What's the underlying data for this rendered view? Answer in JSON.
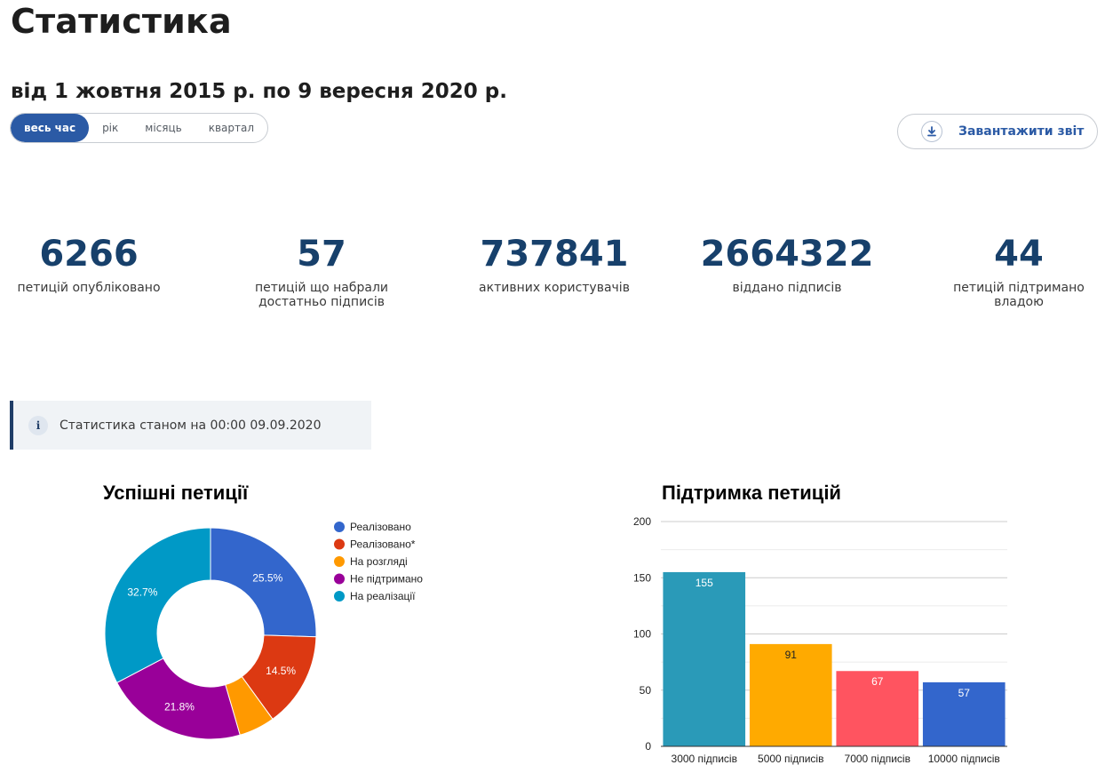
{
  "page": {
    "title": "Статистика",
    "period": "від 1 жовтня 2015 р. по 9 вересня 2020 р."
  },
  "period_tabs": [
    {
      "label": "весь час",
      "active": true
    },
    {
      "label": "рік",
      "active": false
    },
    {
      "label": "місяць",
      "active": false
    },
    {
      "label": "квартал",
      "active": false
    }
  ],
  "download": {
    "label": "Завантажити звіт",
    "icon": "download-icon"
  },
  "stats": [
    {
      "value": "6266",
      "label": "петицій опубліковано"
    },
    {
      "value": "57",
      "label": "петицій що набрали достатньо підписів"
    },
    {
      "value": "737841",
      "label": "активних користувачів"
    },
    {
      "value": "2664322",
      "label": "віддано підписів"
    },
    {
      "value": "44",
      "label": "петицій підтримано владою"
    }
  ],
  "info": {
    "text": "Статистика станом на 00:00 09.09.2020",
    "icon": "info-icon"
  },
  "colors": {
    "accent": "#2b5aa5",
    "stat_number": "#17406b"
  },
  "chart_data": [
    {
      "type": "pie",
      "donut": true,
      "title": "Успішні петиції",
      "legend_position": "right",
      "categories": [
        "Реалізовано",
        "Реалізовано*",
        "На розгляді",
        "Не підтримано",
        "На реалізації"
      ],
      "values": [
        25.5,
        14.5,
        5.5,
        21.8,
        32.7
      ],
      "labels": [
        "25.5%",
        "14.5%",
        "",
        "21.8%",
        "32.7%"
      ],
      "colors": [
        "#3366cc",
        "#dc3912",
        "#ff9900",
        "#990099",
        "#0099c6"
      ]
    },
    {
      "type": "bar",
      "title": "Підтримка петицій",
      "categories": [
        "3000 підписів",
        "5000 підписів",
        "7000 підписів",
        "10000 підписів"
      ],
      "values": [
        155,
        91,
        67,
        57
      ],
      "ylim": [
        0,
        200
      ],
      "yticks": [
        0,
        50,
        100,
        150,
        200
      ],
      "grid": true,
      "colors": [
        "#2a9ab8",
        "#ffaa00",
        "#ff5460",
        "#3366cc"
      ]
    }
  ]
}
